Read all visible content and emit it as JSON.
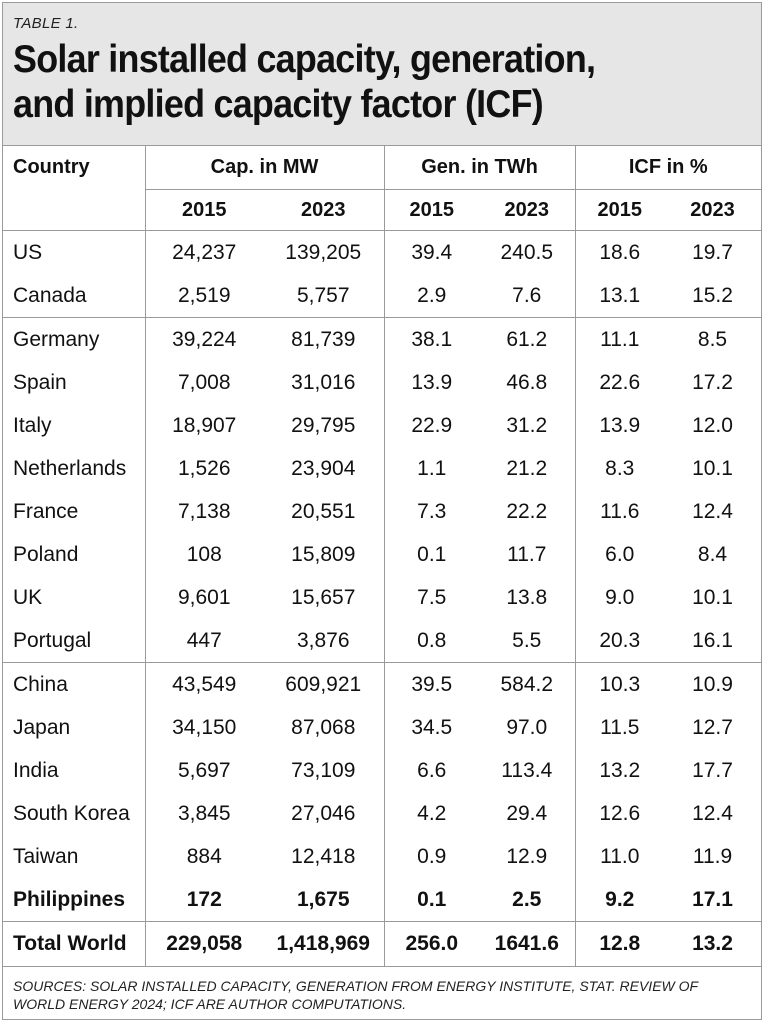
{
  "header": {
    "label": "TABLE 1.",
    "title_line1": "Solar installed capacity, generation,",
    "title_line2": "and implied capacity factor (ICF)"
  },
  "table": {
    "country_header": "Country",
    "groups": [
      "Cap. in MW",
      "Gen. in TWh",
      "ICF in %"
    ],
    "years": [
      "2015",
      "2023",
      "2015",
      "2023",
      "2015",
      "2023"
    ],
    "sections": [
      [
        [
          "US",
          "24,237",
          "139,205",
          "39.4",
          "240.5",
          "18.6",
          "19.7"
        ],
        [
          "Canada",
          "2,519",
          "5,757",
          "2.9",
          "7.6",
          "13.1",
          "15.2"
        ]
      ],
      [
        [
          "Germany",
          "39,224",
          "81,739",
          "38.1",
          "61.2",
          "11.1",
          "8.5"
        ],
        [
          "Spain",
          "7,008",
          "31,016",
          "13.9",
          "46.8",
          "22.6",
          "17.2"
        ],
        [
          "Italy",
          "18,907",
          "29,795",
          "22.9",
          "31.2",
          "13.9",
          "12.0"
        ],
        [
          "Netherlands",
          "1,526",
          "23,904",
          "1.1",
          "21.2",
          "8.3",
          "10.1"
        ],
        [
          "France",
          "7,138",
          "20,551",
          "7.3",
          "22.2",
          "11.6",
          "12.4"
        ],
        [
          "Poland",
          "108",
          "15,809",
          "0.1",
          "11.7",
          "6.0",
          "8.4"
        ],
        [
          "UK",
          "9,601",
          "15,657",
          "7.5",
          "13.8",
          "9.0",
          "10.1"
        ],
        [
          "Portugal",
          "447",
          "3,876",
          "0.8",
          "5.5",
          "20.3",
          "16.1"
        ]
      ],
      [
        [
          "China",
          "43,549",
          "609,921",
          "39.5",
          "584.2",
          "10.3",
          "10.9"
        ],
        [
          "Japan",
          "34,150",
          "87,068",
          "34.5",
          "97.0",
          "11.5",
          "12.7"
        ],
        [
          "India",
          "5,697",
          "73,109",
          "6.6",
          "113.4",
          "13.2",
          "17.7"
        ],
        [
          "South Korea",
          "3,845",
          "27,046",
          "4.2",
          "29.4",
          "12.6",
          "12.4"
        ],
        [
          "Taiwan",
          "884",
          "12,418",
          "0.9",
          "12.9",
          "11.0",
          "11.9"
        ],
        [
          "Philippines",
          "172",
          "1,675",
          "0.1",
          "2.5",
          "9.2",
          "17.1"
        ]
      ]
    ],
    "highlight_row": "Philippines",
    "total": [
      "Total World",
      "229,058",
      "1,418,969",
      "256.0",
      "1641.6",
      "12.8",
      "13.2"
    ]
  },
  "footer": {
    "sources": "SOURCES: SOLAR INSTALLED CAPACITY, GENERATION FROM ENERGY INSTITUTE, STAT. REVIEW OF WORLD ENERGY 2024; ICF ARE AUTHOR COMPUTATIONS."
  }
}
